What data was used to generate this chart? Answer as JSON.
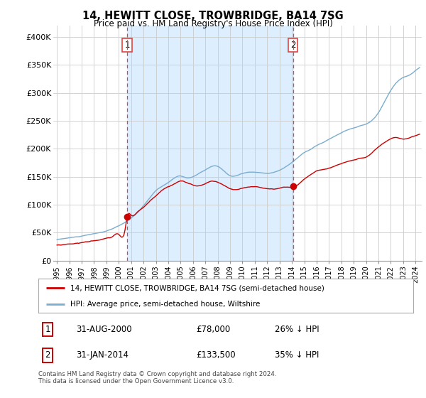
{
  "title": "14, HEWITT CLOSE, TROWBRIDGE, BA14 7SG",
  "subtitle": "Price paid vs. HM Land Registry's House Price Index (HPI)",
  "legend_line1": "14, HEWITT CLOSE, TROWBRIDGE, BA14 7SG (semi-detached house)",
  "legend_line2": "HPI: Average price, semi-detached house, Wiltshire",
  "footnote": "Contains HM Land Registry data © Crown copyright and database right 2024.\nThis data is licensed under the Open Government Licence v3.0.",
  "transaction1_date": "31-AUG-2000",
  "transaction1_price": "£78,000",
  "transaction1_hpi": "26% ↓ HPI",
  "transaction2_date": "31-JAN-2014",
  "transaction2_price": "£133,500",
  "transaction2_hpi": "35% ↓ HPI",
  "property_color": "#cc0000",
  "hpi_color": "#7aadcf",
  "vline_color": "#dd4444",
  "shade_color": "#ddeeff",
  "ylim": [
    0,
    420000
  ],
  "yticks": [
    0,
    50000,
    100000,
    150000,
    200000,
    250000,
    300000,
    350000,
    400000
  ],
  "ytick_labels": [
    "£0",
    "£50K",
    "£100K",
    "£150K",
    "£200K",
    "£250K",
    "£300K",
    "£350K",
    "£400K"
  ],
  "xlim_min": 1995.0,
  "xlim_max": 2024.5,
  "vline1_x": 2000.667,
  "vline2_x": 2014.083,
  "marker1_y": 78000,
  "marker2_y": 133500,
  "background_color": "#ffffff",
  "grid_color": "#cccccc"
}
